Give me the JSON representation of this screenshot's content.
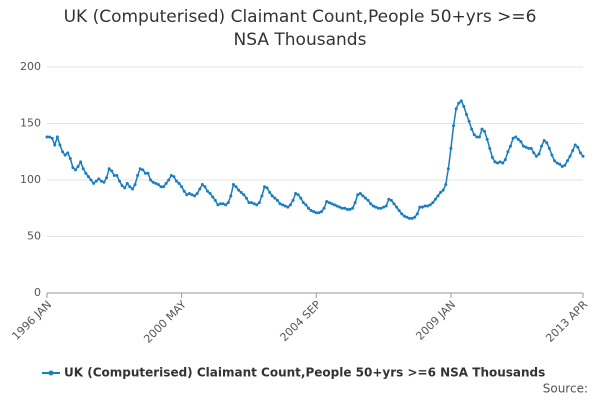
{
  "chart_data": {
    "type": "line",
    "title": [
      "UK (Computerised) Claimant Count,People 50+yrs >=6",
      "NSA Thousands"
    ],
    "categories": [
      "1996 JAN",
      null,
      null,
      null,
      null,
      null,
      null,
      null,
      null,
      null,
      null,
      null,
      null,
      null,
      null,
      null,
      null,
      null,
      null,
      null,
      null,
      null,
      null,
      null,
      null,
      null,
      null,
      null,
      null,
      null,
      null,
      null,
      null,
      null,
      null,
      null,
      null,
      null,
      null,
      null,
      null,
      null,
      null,
      null,
      null,
      null,
      null,
      null,
      null,
      null,
      null,
      null,
      "2000 MAY",
      null,
      null,
      null,
      null,
      null,
      null,
      null,
      null,
      null,
      null,
      null,
      null,
      null,
      null,
      null,
      null,
      null,
      null,
      null,
      null,
      null,
      null,
      null,
      null,
      null,
      null,
      null,
      null,
      null,
      null,
      null,
      null,
      null,
      null,
      null,
      null,
      null,
      null,
      null,
      null,
      null,
      null,
      null,
      null,
      null,
      null,
      null,
      null,
      null,
      null,
      null,
      "2004 SEP",
      null,
      null,
      null,
      null,
      null,
      null,
      null,
      null,
      null,
      null,
      null,
      null,
      null,
      null,
      null,
      null,
      null,
      null,
      null,
      null,
      null,
      null,
      null,
      null,
      null,
      null,
      null,
      null,
      null,
      null,
      null,
      null,
      null,
      null,
      null,
      null,
      null,
      null,
      null,
      null,
      null,
      null,
      null,
      null,
      null,
      null,
      null,
      null,
      null,
      null,
      null,
      "2009 JAN",
      null,
      null,
      null,
      null,
      null,
      null,
      null,
      null,
      null,
      null,
      null,
      null,
      null,
      null,
      null,
      null,
      null,
      null,
      null,
      null,
      null,
      null,
      null,
      null,
      null,
      null,
      null,
      null,
      null,
      null,
      null,
      null,
      null,
      null,
      null,
      null,
      null,
      null,
      null,
      null,
      null,
      null,
      null,
      null,
      null,
      null,
      null,
      null,
      null,
      null,
      "2013 APR"
    ],
    "series": [
      {
        "name": "UK (Computerised) Claimant Count,People 50+yrs >=6 NSA Thousands",
        "color": "#1a7dc0",
        "values": [
          138,
          138,
          137,
          131,
          138,
          131,
          125,
          122,
          124,
          119,
          111,
          109,
          112,
          116,
          110,
          106,
          103,
          100,
          97,
          99,
          101,
          99,
          98,
          102,
          110,
          108,
          104,
          104,
          99,
          95,
          93,
          97,
          94,
          92,
          96,
          104,
          110,
          109,
          106,
          106,
          100,
          98,
          97,
          96,
          94,
          94,
          97,
          100,
          104,
          103,
          99,
          97,
          94,
          90,
          87,
          88,
          87,
          86,
          88,
          92,
          96,
          94,
          90,
          88,
          85,
          82,
          78,
          79,
          79,
          78,
          80,
          86,
          96,
          94,
          91,
          89,
          87,
          84,
          80,
          80,
          79,
          78,
          80,
          86,
          94,
          93,
          89,
          86,
          84,
          82,
          79,
          78,
          77,
          76,
          78,
          82,
          88,
          87,
          84,
          80,
          78,
          75,
          73,
          72,
          71,
          71,
          72,
          75,
          81,
          80,
          79,
          78,
          77,
          76,
          75,
          75,
          74,
          74,
          75,
          80,
          87,
          88,
          86,
          84,
          82,
          79,
          77,
          76,
          75,
          75,
          76,
          77,
          83,
          82,
          79,
          76,
          73,
          70,
          68,
          67,
          66,
          66,
          67,
          70,
          76,
          76,
          77,
          77,
          78,
          80,
          83,
          86,
          89,
          91,
          96,
          110,
          128,
          148,
          163,
          168,
          170,
          165,
          158,
          152,
          145,
          140,
          138,
          138,
          145,
          143,
          136,
          128,
          120,
          116,
          115,
          116,
          115,
          118,
          125,
          130,
          137,
          138,
          136,
          134,
          130,
          129,
          128,
          128,
          124,
          121,
          123,
          130,
          135,
          133,
          128,
          122,
          117,
          115,
          114,
          112,
          113,
          117,
          121,
          126,
          131,
          129,
          124,
          121
        ]
      }
    ],
    "ylim": [
      0,
      200
    ],
    "yticks": [
      0,
      50,
      100,
      150,
      200
    ],
    "grid": true,
    "source": "Source:"
  }
}
